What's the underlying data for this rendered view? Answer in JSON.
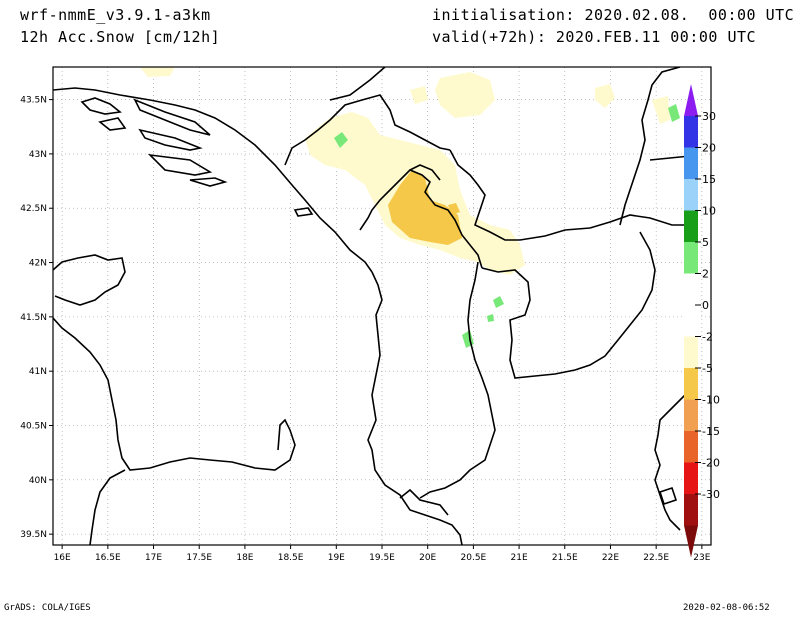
{
  "header": {
    "model": "wrf-nmmE_v3.9.1-a3km",
    "field": "12h Acc.Snow [cm/12h]",
    "init": "initialisation: 2020.02.08.  00:00 UTC",
    "valid": "valid(+72h): 2020.FEB.11 00:00 UTC"
  },
  "footer": {
    "left": "GrADS: COLA/IGES",
    "right": "2020-02-08-06:52"
  },
  "map": {
    "lat_ticks": [
      "43.5N",
      "43N",
      "42.5N",
      "42N",
      "41.5N",
      "41N",
      "40.5N",
      "40N",
      "39.5N"
    ],
    "lon_ticks": [
      "16E",
      "16.5E",
      "17E",
      "17.5E",
      "18E",
      "18.5E",
      "19E",
      "19.5E",
      "20E",
      "20.5E",
      "21E",
      "21.5E",
      "22E",
      "22.5E",
      "23E"
    ],
    "lon_range": [
      15.9,
      23.1
    ],
    "lat_range": [
      39.4,
      43.8
    ]
  },
  "colorbar": {
    "labels": [
      "30",
      "20",
      "15",
      "10",
      "5",
      "2",
      "0",
      "-2",
      "-5",
      "-10",
      "-15",
      "-20",
      "-30"
    ],
    "positive_colors": [
      "#8c1cf0",
      "#3232e6",
      "#4696f0",
      "#9ad2fa",
      "#189e18",
      "#78e878"
    ],
    "negative_colors": [
      "#fffacd",
      "#f5c84a",
      "#f0a050",
      "#e86428",
      "#e61414",
      "#a01010",
      "#7d0a0a"
    ]
  }
}
